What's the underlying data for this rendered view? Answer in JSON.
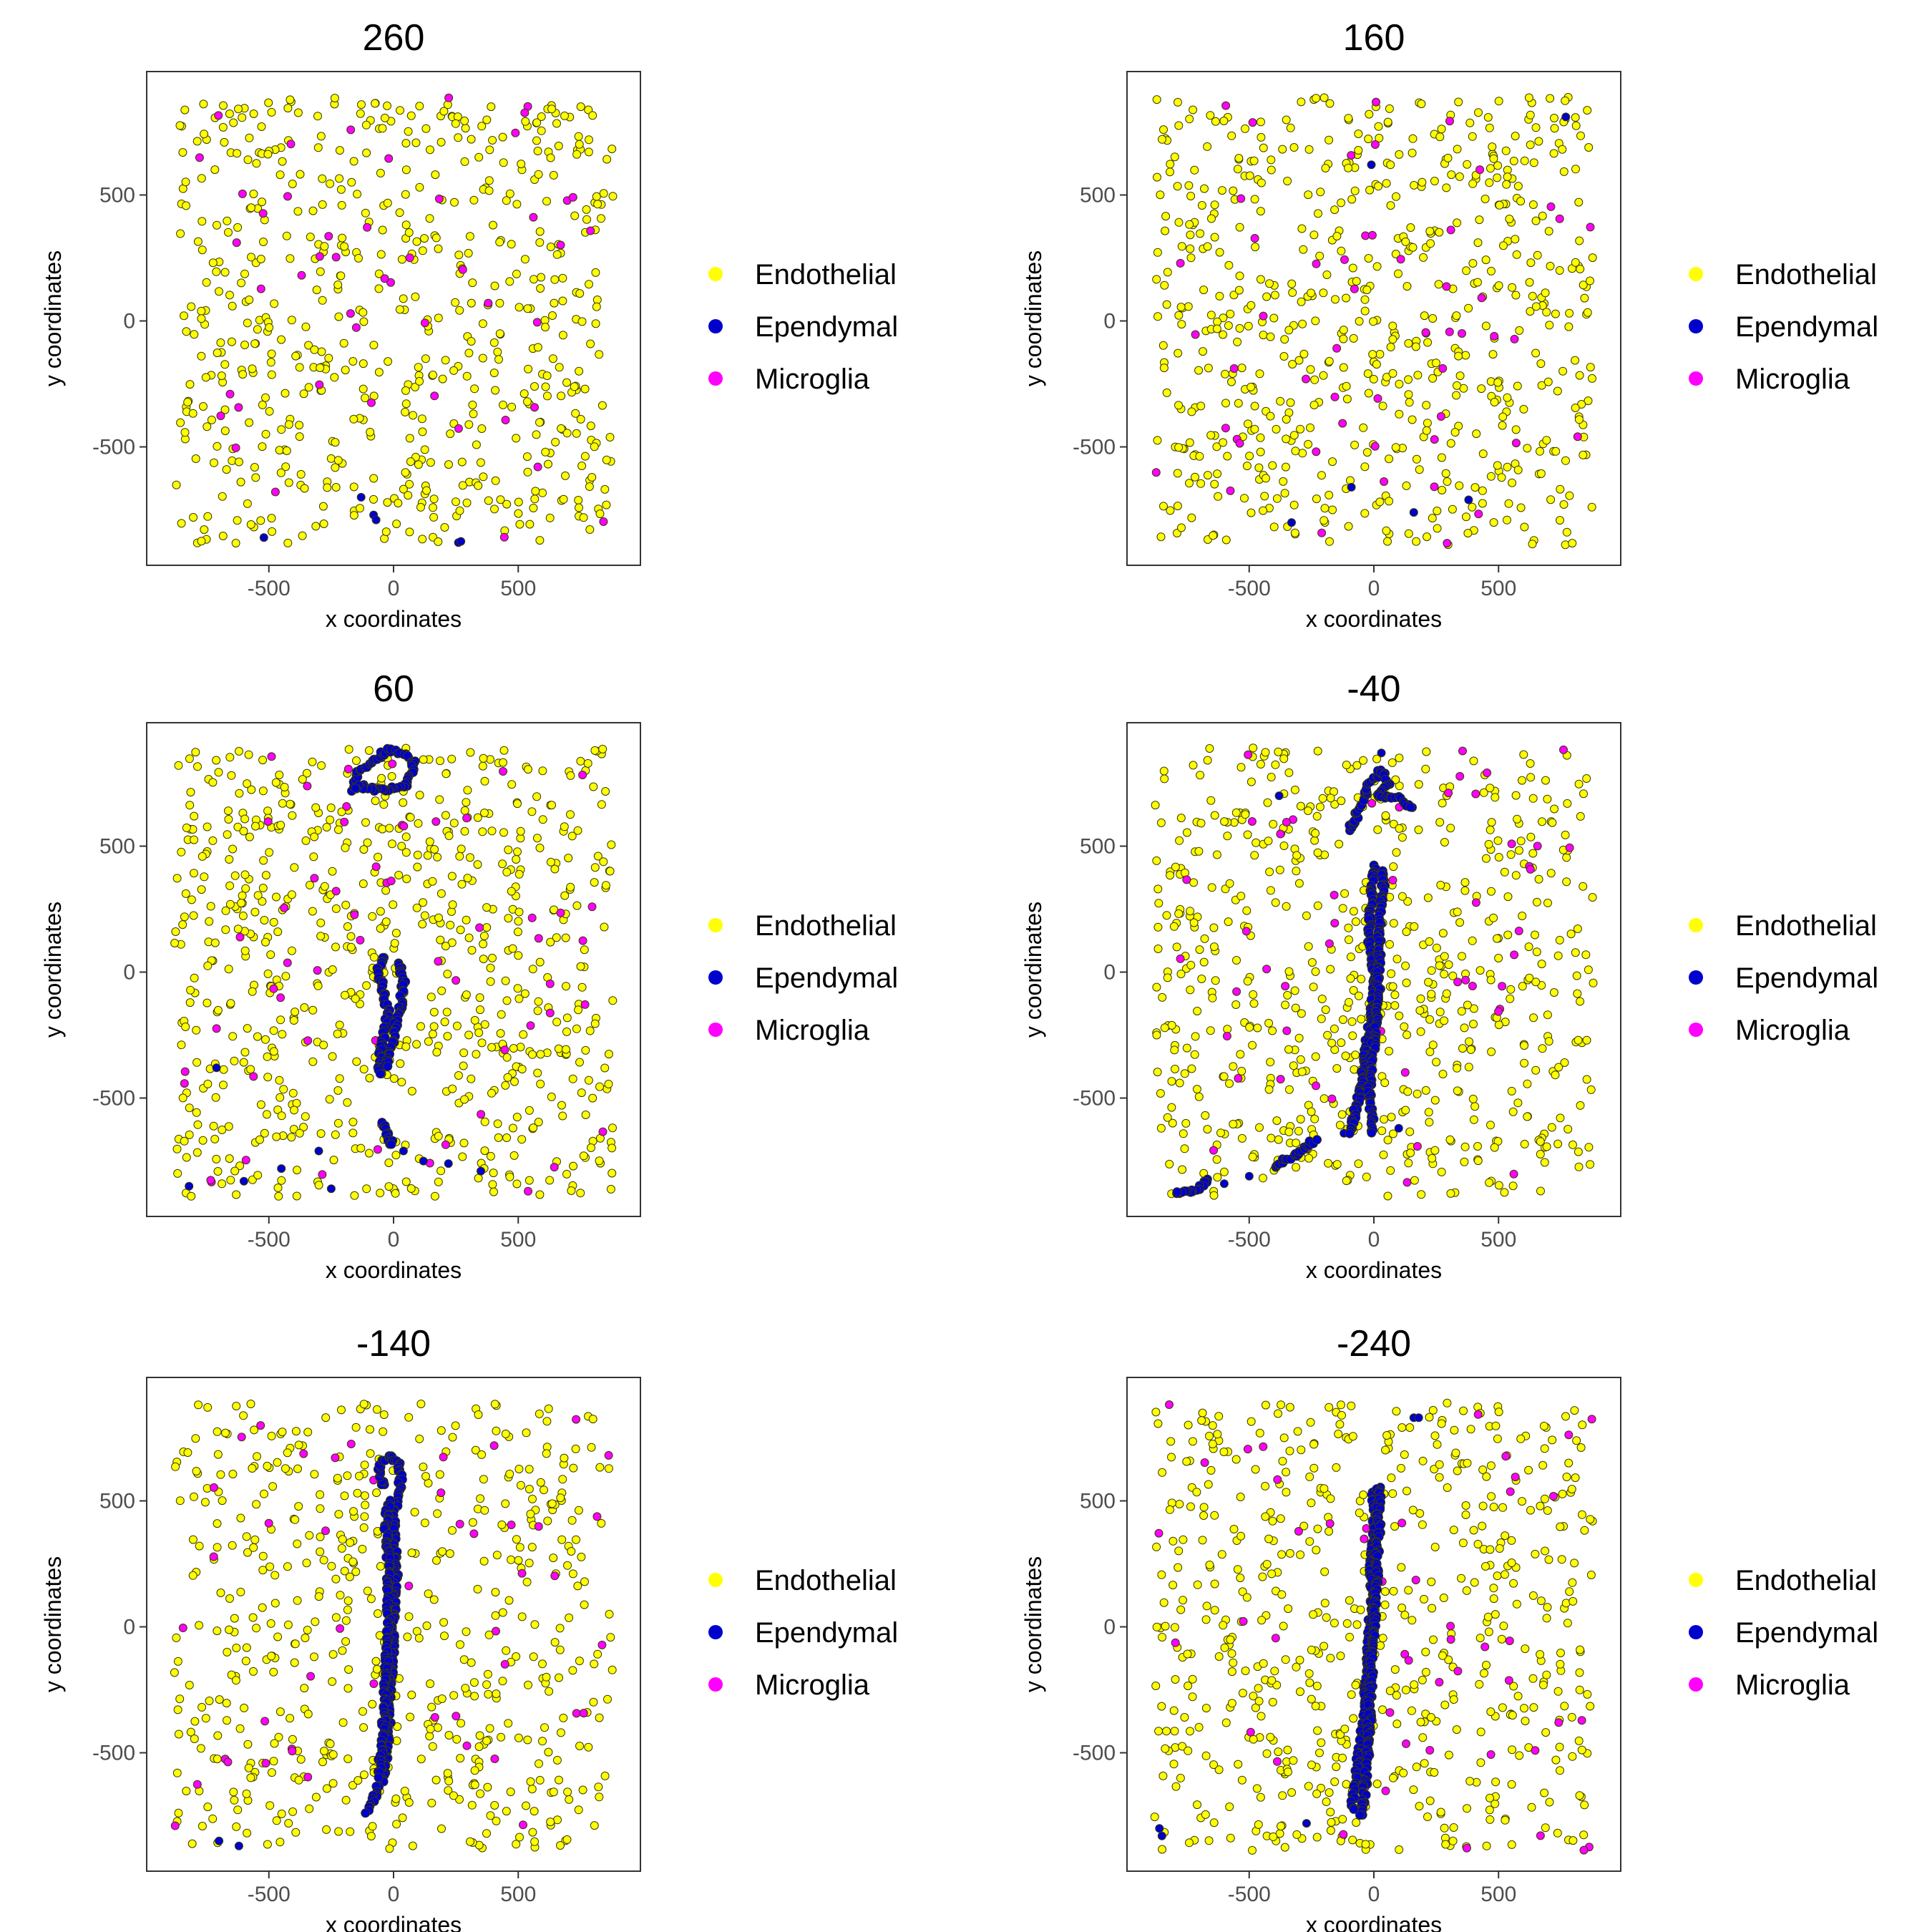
{
  "chart_data": {
    "type": "scatter",
    "layout": "faceted grid, 3 rows x 2 columns, legend to the right of each panel",
    "x_axis": {
      "label": "x coordinates",
      "range": [
        -990,
        990
      ],
      "ticks": [
        -500,
        0,
        500
      ]
    },
    "y_axis": {
      "label": "y coordinates",
      "range": [
        -970,
        990
      ],
      "ticks": [
        -500,
        0,
        500
      ]
    },
    "grid": false,
    "legend": {
      "position": "right",
      "entries": [
        {
          "name": "Endothelial",
          "color": "#FFFF00"
        },
        {
          "name": "Ependymal",
          "color": "#0000CD"
        },
        {
          "name": "Microglia",
          "color": "#FF00FF"
        }
      ]
    },
    "panels": [
      {
        "title": "260",
        "endothelial_count": 620,
        "microglia_count": 48,
        "ependymal_points": [
          [
            -520,
            -860
          ],
          [
            -130,
            -700
          ],
          [
            -80,
            -770
          ],
          [
            -70,
            -790
          ],
          [
            260,
            -880
          ],
          [
            270,
            -875
          ]
        ],
        "ependymal_paths": []
      },
      {
        "title": "160",
        "endothelial_count": 640,
        "microglia_count": 52,
        "ependymal_points": [
          [
            770,
            810
          ],
          [
            -330,
            -800
          ],
          [
            -90,
            -660
          ],
          [
            160,
            -760
          ],
          [
            380,
            -710
          ],
          [
            -10,
            620
          ]
        ],
        "ependymal_paths": []
      },
      {
        "title": "60",
        "endothelial_count": 720,
        "microglia_count": 58,
        "ependymal_points": [
          [
            -710,
            -380
          ],
          [
            -600,
            -830
          ],
          [
            -450,
            -780
          ],
          [
            -300,
            -710
          ],
          [
            -250,
            -860
          ],
          [
            40,
            -710
          ],
          [
            120,
            -750
          ],
          [
            220,
            -760
          ],
          [
            350,
            -790
          ],
          [
            -820,
            -850
          ]
        ],
        "ependymal_paths": [
          [
            [
              -160,
              720
            ],
            [
              -140,
              800
            ],
            [
              -80,
              840
            ],
            [
              -20,
              880
            ],
            [
              40,
              870
            ],
            [
              80,
              830
            ],
            [
              60,
              740
            ],
            [
              0,
              730
            ],
            [
              -60,
              720
            ],
            [
              -120,
              740
            ],
            [
              -160,
              720
            ]
          ],
          [
            [
              -40,
              60
            ],
            [
              -60,
              0
            ],
            [
              -40,
              -80
            ],
            [
              -20,
              -160
            ],
            [
              -40,
              -260
            ],
            [
              -60,
              -360
            ],
            [
              -50,
              -420
            ]
          ],
          [
            [
              20,
              40
            ],
            [
              40,
              -40
            ],
            [
              30,
              -120
            ],
            [
              10,
              -200
            ],
            [
              -10,
              -300
            ],
            [
              -30,
              -380
            ]
          ],
          [
            [
              -40,
              -600
            ],
            [
              -20,
              -660
            ],
            [
              0,
              -700
            ]
          ]
        ]
      },
      {
        "title": "-40",
        "endothelial_count": 640,
        "microglia_count": 50,
        "ependymal_points": [
          [
            -380,
            700
          ],
          [
            -600,
            -840
          ],
          [
            -780,
            -880
          ],
          [
            -500,
            -810
          ],
          [
            -120,
            -640
          ],
          [
            100,
            -620
          ],
          [
            30,
            870
          ]
        ],
        "ependymal_paths": [
          [
            [
              -100,
              560
            ],
            [
              -60,
              640
            ],
            [
              -20,
              740
            ],
            [
              30,
              800
            ],
            [
              60,
              750
            ],
            [
              10,
              700
            ],
            [
              70,
              700
            ],
            [
              120,
              680
            ],
            [
              160,
              650
            ]
          ],
          [
            [
              0,
              420
            ],
            [
              -10,
              300
            ],
            [
              -20,
              150
            ],
            [
              0,
              0
            ],
            [
              -10,
              -150
            ],
            [
              -30,
              -300
            ],
            [
              -50,
              -450
            ],
            [
              -80,
              -580
            ],
            [
              -90,
              -650
            ]
          ],
          [
            [
              40,
              400
            ],
            [
              30,
              250
            ],
            [
              20,
              100
            ],
            [
              20,
              -50
            ],
            [
              10,
              -200
            ],
            [
              -10,
              -350
            ],
            [
              -20,
              -500
            ],
            [
              0,
              -650
            ]
          ],
          [
            [
              -660,
              -820
            ],
            [
              -720,
              -870
            ],
            [
              -800,
              -880
            ]
          ],
          [
            [
              -400,
              -770
            ],
            [
              -300,
              -720
            ],
            [
              -230,
              -660
            ]
          ]
        ]
      },
      {
        "title": "-140",
        "endothelial_count": 560,
        "microglia_count": 46,
        "ependymal_points": [
          [
            -700,
            -850
          ],
          [
            -620,
            -870
          ]
        ],
        "ependymal_paths": [
          [
            [
              -40,
              560
            ],
            [
              -60,
              640
            ],
            [
              -20,
              680
            ],
            [
              20,
              660
            ],
            [
              30,
              580
            ],
            [
              10,
              500
            ],
            [
              0,
              400
            ],
            [
              10,
              200
            ],
            [
              0,
              0
            ],
            [
              -10,
              -200
            ],
            [
              -20,
              -400
            ],
            [
              -40,
              -600
            ],
            [
              -110,
              -740
            ]
          ],
          [
            [
              -20,
              500
            ],
            [
              -30,
              400
            ],
            [
              -20,
              200
            ],
            [
              -20,
              0
            ],
            [
              -30,
              -200
            ],
            [
              -40,
              -400
            ],
            [
              -60,
              -600
            ]
          ]
        ]
      },
      {
        "title": "-240",
        "endothelial_count": 600,
        "microglia_count": 48,
        "ependymal_points": [
          [
            -860,
            -800
          ],
          [
            -850,
            -830
          ],
          [
            160,
            830
          ],
          [
            180,
            830
          ],
          [
            -270,
            -780
          ]
        ],
        "ependymal_paths": [
          [
            [
              0,
              550
            ],
            [
              0,
              400
            ],
            [
              -10,
              250
            ],
            [
              -10,
              100
            ],
            [
              -20,
              -50
            ],
            [
              -30,
              -200
            ],
            [
              -40,
              -350
            ],
            [
              -60,
              -500
            ],
            [
              -80,
              -650
            ],
            [
              -90,
              -730
            ]
          ],
          [
            [
              20,
              560
            ],
            [
              20,
              400
            ],
            [
              10,
              200
            ],
            [
              0,
              0
            ],
            [
              -10,
              -200
            ],
            [
              -20,
              -400
            ],
            [
              -30,
              -600
            ],
            [
              -50,
              -760
            ]
          ]
        ]
      }
    ]
  }
}
